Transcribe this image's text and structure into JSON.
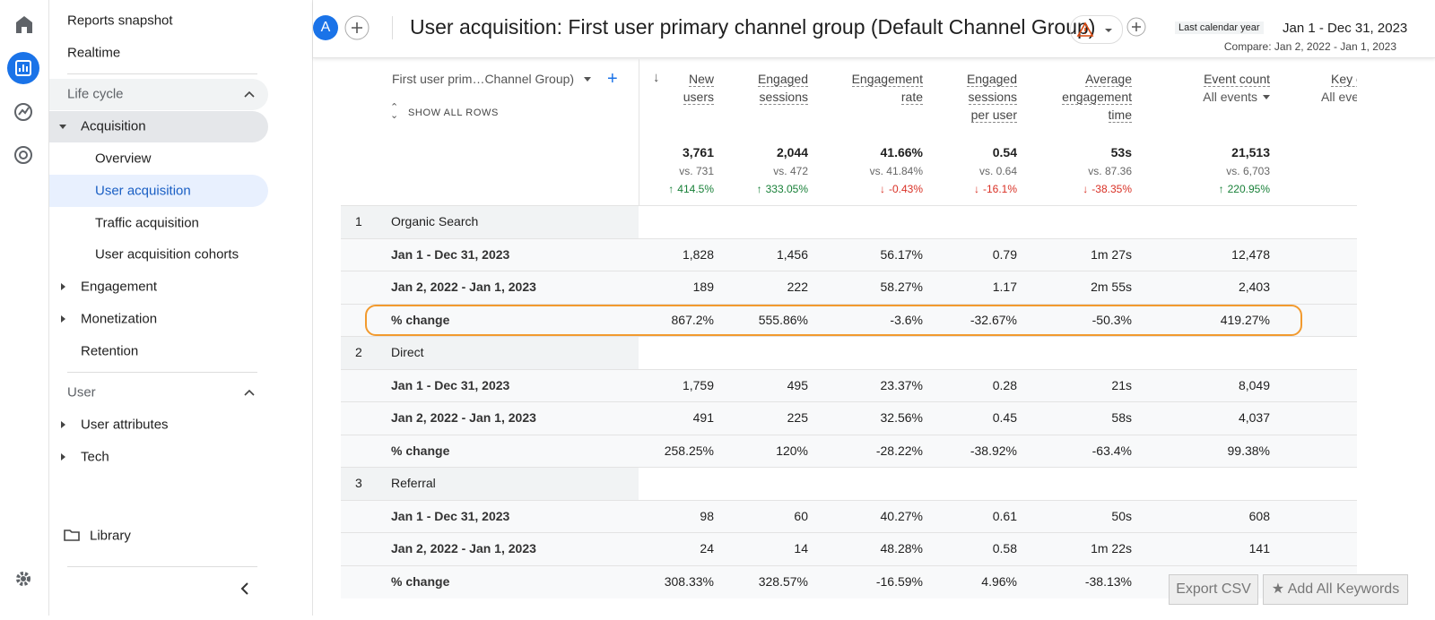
{
  "nav": {
    "items": [
      "Reports snapshot",
      "Realtime",
      "Life cycle",
      "Acquisition",
      "Overview",
      "User acquisition",
      "Traffic acquisition",
      "User acquisition cohorts",
      "Engagement",
      "Monetization",
      "Retention",
      "User",
      "User attributes",
      "Tech",
      "Library"
    ]
  },
  "header": {
    "avatar": "A",
    "title": "User acquisition: First user primary channel group (Default Channel Group)",
    "date_label": "Last calendar year",
    "date_range": "Jan 1 - Dec 31, 2023",
    "compare": "Compare: Jan 2, 2022 - Jan 1, 2023"
  },
  "table": {
    "dimension": "First user prim…Channel Group)",
    "show_all": "SHOW ALL ROWS",
    "columns": [
      {
        "label": [
          "New",
          "users"
        ]
      },
      {
        "label": [
          "Engaged",
          "sessions"
        ]
      },
      {
        "label": [
          "Engagement",
          "rate"
        ]
      },
      {
        "label": [
          "Engaged",
          "sessions",
          "per user"
        ]
      },
      {
        "label": [
          "Average",
          "engagement",
          "time"
        ]
      },
      {
        "label": [
          "Event count"
        ],
        "filter": "All events"
      }
    ],
    "partial_column": {
      "label": "Key e",
      "filter": "All eve"
    },
    "totals": [
      {
        "value": "3,761",
        "compare": "vs. 731",
        "change": "414.5%",
        "direction": "up"
      },
      {
        "value": "2,044",
        "compare": "vs. 472",
        "change": "333.05%",
        "direction": "up"
      },
      {
        "value": "41.66%",
        "compare": "vs. 41.84%",
        "change": "-0.43%",
        "direction": "down"
      },
      {
        "value": "0.54",
        "compare": "vs. 0.64",
        "change": "-16.1%",
        "direction": "down"
      },
      {
        "value": "53s",
        "compare": "vs. 87.36",
        "change": "-38.35%",
        "direction": "down"
      },
      {
        "value": "21,513",
        "compare": "vs. 6,703",
        "change": "220.95%",
        "direction": "up"
      }
    ],
    "groups": [
      {
        "index": "1",
        "name": "Organic Search",
        "rows": [
          {
            "label": "Jan 1 - Dec 31, 2023",
            "cells": [
              "1,828",
              "1,456",
              "56.17%",
              "0.79",
              "1m 27s",
              "12,478"
            ]
          },
          {
            "label": "Jan 2, 2022 - Jan 1, 2023",
            "cells": [
              "189",
              "222",
              "58.27%",
              "1.17",
              "2m 55s",
              "2,403"
            ]
          },
          {
            "label": "% change",
            "cells": [
              "867.2%",
              "555.86%",
              "-3.6%",
              "-32.67%",
              "-50.3%",
              "419.27%"
            ],
            "highlighted": true
          }
        ]
      },
      {
        "index": "2",
        "name": "Direct",
        "rows": [
          {
            "label": "Jan 1 - Dec 31, 2023",
            "cells": [
              "1,759",
              "495",
              "23.37%",
              "0.28",
              "21s",
              "8,049"
            ]
          },
          {
            "label": "Jan 2, 2022 - Jan 1, 2023",
            "cells": [
              "491",
              "225",
              "32.56%",
              "0.45",
              "58s",
              "4,037"
            ]
          },
          {
            "label": "% change",
            "cells": [
              "258.25%",
              "120%",
              "-28.22%",
              "-38.92%",
              "-63.4%",
              "99.38%"
            ]
          }
        ]
      },
      {
        "index": "3",
        "name": "Referral",
        "rows": [
          {
            "label": "Jan 1 - Dec 31, 2023",
            "cells": [
              "98",
              "60",
              "40.27%",
              "0.61",
              "50s",
              "608"
            ]
          },
          {
            "label": "Jan 2, 2022 - Jan 1, 2023",
            "cells": [
              "24",
              "14",
              "48.28%",
              "0.58",
              "1m 22s",
              "141"
            ]
          },
          {
            "label": "% change",
            "cells": [
              "308.33%",
              "328.57%",
              "-16.59%",
              "4.96%",
              "-38.13%",
              null
            ]
          }
        ]
      }
    ]
  },
  "buttons": {
    "export": "Export CSV",
    "keywords": "★ Add All Keywords"
  }
}
